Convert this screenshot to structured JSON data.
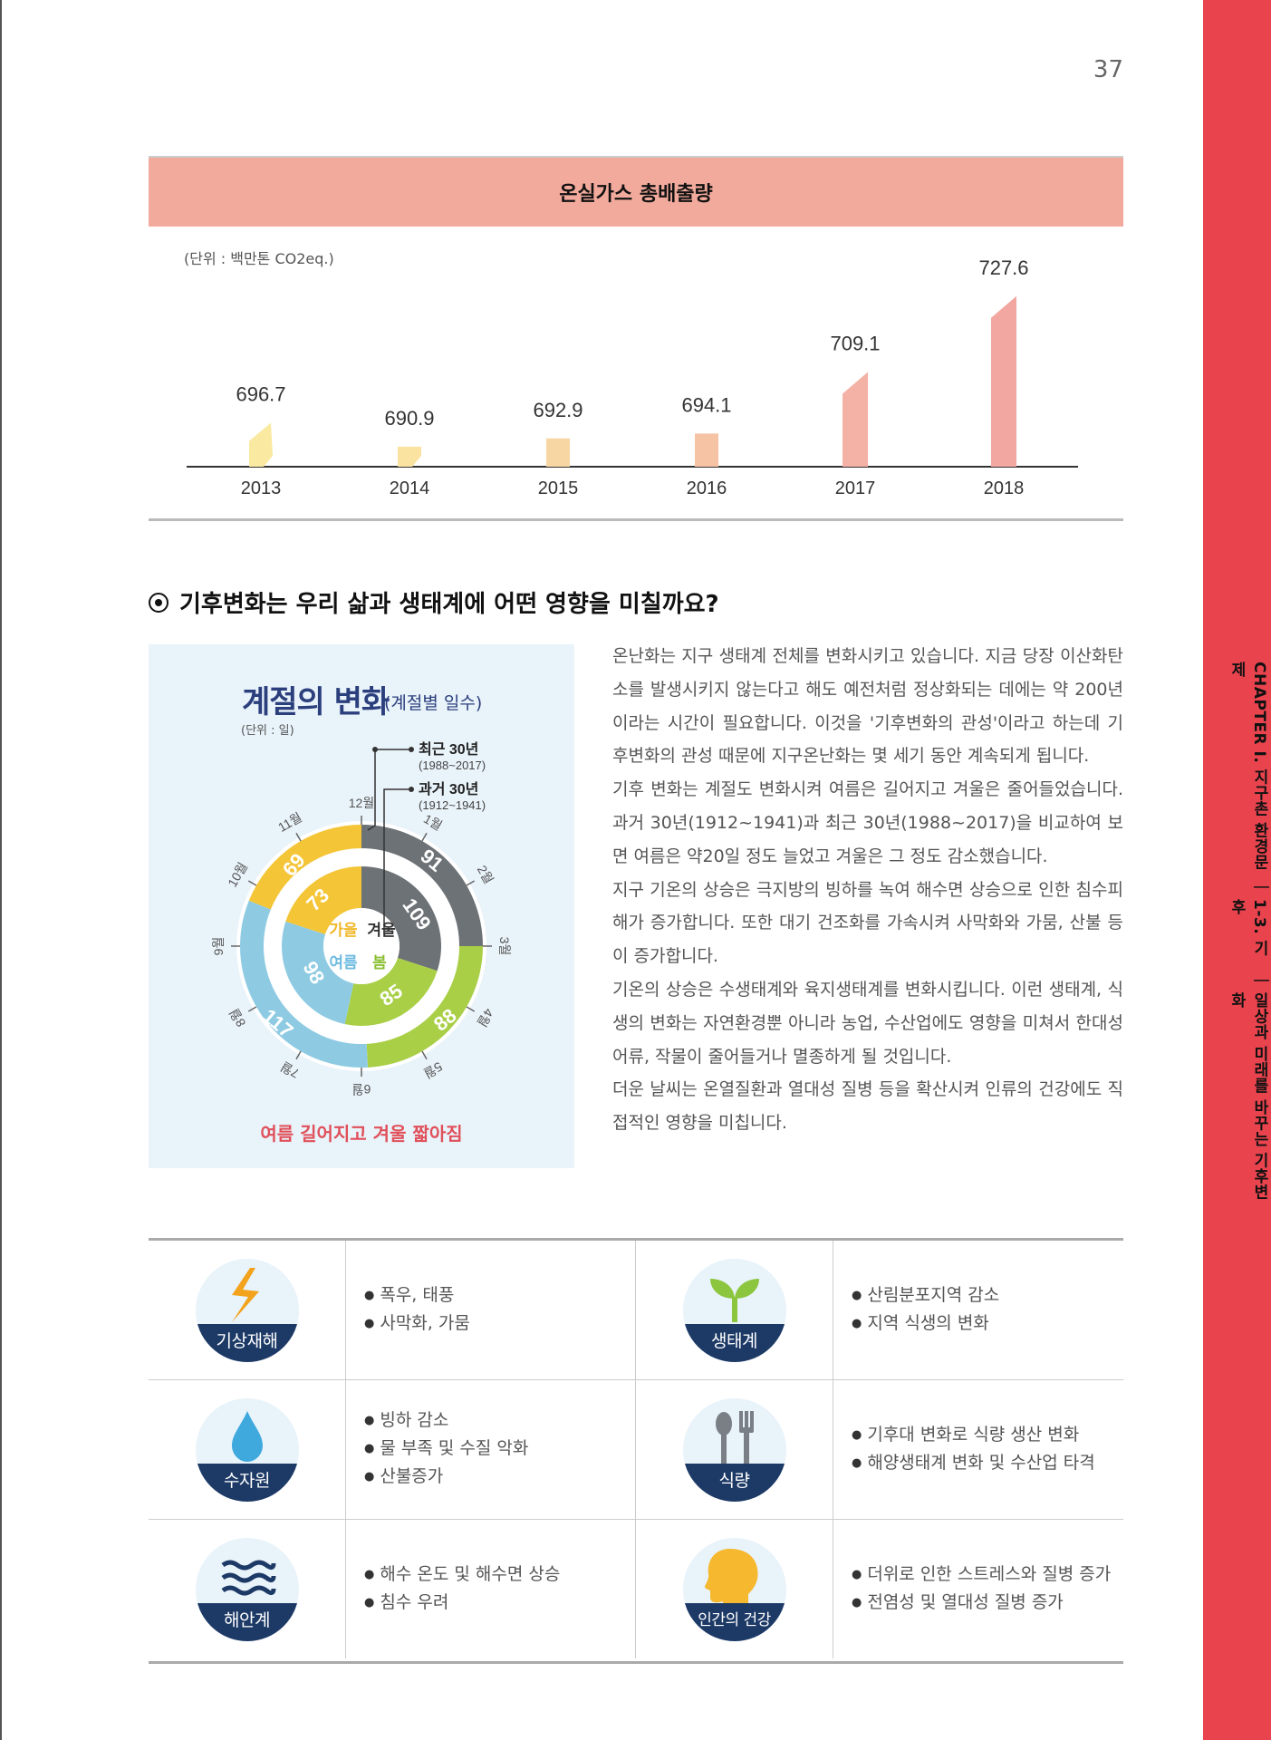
{
  "page": {
    "number": "37"
  },
  "side": {
    "chapter": "CHAPTER I. 지구촌 환경문제",
    "separator1": "|",
    "section": "1-3. 기후",
    "separator2": "|",
    "subtitle": "일상과 미래를 바꾸는 기후변화"
  },
  "chart": {
    "header": "온실가스 총배출량",
    "unit": "(단위 : 백만톤 CO2eq.)"
  },
  "chart_data": {
    "type": "bar",
    "title": "온실가스 총배출량",
    "categories": [
      "2013",
      "2014",
      "2015",
      "2016",
      "2017",
      "2018"
    ],
    "values": [
      696.7,
      690.9,
      692.9,
      694.1,
      709.1,
      727.6
    ],
    "value_labels": [
      "696.7",
      "690.9",
      "692.9",
      "694.1",
      "709.1",
      "727.6"
    ],
    "colors": [
      "#fae9a0",
      "#fae3a1",
      "#f8d6a4",
      "#f6c3a5",
      "#f4b1a6",
      "#f2a7a0"
    ],
    "unit": "(단위 : 백만톤 CO2eq.)",
    "ylim": [
      686,
      728
    ],
    "grid": false
  },
  "section": {
    "title": "기후변화는 우리 삶과 생태계에 어떤 영향을 미칠까요?"
  },
  "season": {
    "title": "계절의 변화",
    "subtitle": "(계절별 일수)",
    "unit": "(단위 : 일)",
    "legend_recent": "최근 30년",
    "legend_recent_years": "(1988~2017)",
    "legend_past": "과거 30년",
    "legend_past_years": "(1912~1941)",
    "months": [
      "12월",
      "1월",
      "2월",
      "3월",
      "4월",
      "5월",
      "6월",
      "7월",
      "8월",
      "9월",
      "10월",
      "11월"
    ],
    "recent": {
      "winter": "91",
      "spring": "88",
      "summer": "117",
      "autumn": "69"
    },
    "past": {
      "winter": "109",
      "spring": "85",
      "summer": "98",
      "autumn": "73"
    },
    "labels": {
      "autumn": "가을",
      "winter": "겨울",
      "summer": "여름",
      "spring": "봄"
    },
    "caption": "여름 길어지고 겨울 짧아짐",
    "colors": {
      "winter": "#6d7276",
      "spring": "#a9cf47",
      "summer": "#8ecbe3",
      "autumn": "#f4c537"
    }
  },
  "body_paragraphs": [
    "온난화는 지구 생태계 전체를 변화시키고 있습니다. 지금 당장 이산화탄소를 발생시키지 않는다고 해도 예전처럼 정상화되는 데에는 약 200년이라는 시간이 필요합니다. 이것을 '기후변화의 관성'이라고 하는데 기후변화의 관성 때문에 지구온난화는 몇 세기 동안 계속되게 됩니다.",
    "기후 변화는 계절도 변화시켜 여름은 길어지고 겨울은 줄어들었습니다. 과거 30년(1912~1941)과 최근 30년(1988~2017)을 비교하여 보면 여름은 약20일 정도 늘었고 겨울은 그 정도 감소했습니다.",
    "지구 기온의 상승은 극지방의 빙하를 녹여 해수면 상승으로 인한 침수피해가 증가합니다. 또한 대기 건조화를 가속시켜 사막화와 가뭄, 산불 등이 증가합니다.",
    "기온의 상승은 수생태계와 육지생태계를 변화시킵니다. 이런 생태계, 식생의 변화는 자연환경뿐 아니라 농업, 수산업에도 영향을 미쳐서 한대성 어류, 작물이 줄어들거나 멸종하게 될 것입니다.",
    "더운 날씨는 온열질환과 열대성 질병 등을 확산시켜 인류의 건강에도 직접적인 영향을 미칩니다."
  ],
  "impacts": {
    "weather": {
      "label": "기상재해",
      "icon": "lightning-icon",
      "items": [
        "폭우, 태풍",
        "사막화, 가뭄"
      ]
    },
    "ecosystem": {
      "label": "생태계",
      "icon": "sprout-icon",
      "items": [
        "산림분포지역 감소",
        "지역 식생의 변화"
      ]
    },
    "water": {
      "label": "수자원",
      "icon": "water-drop-icon",
      "items": [
        "빙하 감소",
        "물 부족 및 수질 악화",
        "산불증가"
      ]
    },
    "food": {
      "label": "식량",
      "icon": "fork-spoon-icon",
      "items": [
        "기후대 변화로 식량 생산 변화",
        "해양생태계 변화 및 수산업 타격"
      ]
    },
    "coast": {
      "label": "해안계",
      "icon": "waves-icon",
      "items": [
        "해수 온도 및 해수면 상승",
        "침수 우려"
      ]
    },
    "health": {
      "label": "인간의 건강",
      "icon": "head-icon",
      "items": [
        "더위로 인한 스트레스와 질병 증가",
        "전염성 및 열대성 질병 증가"
      ]
    }
  }
}
